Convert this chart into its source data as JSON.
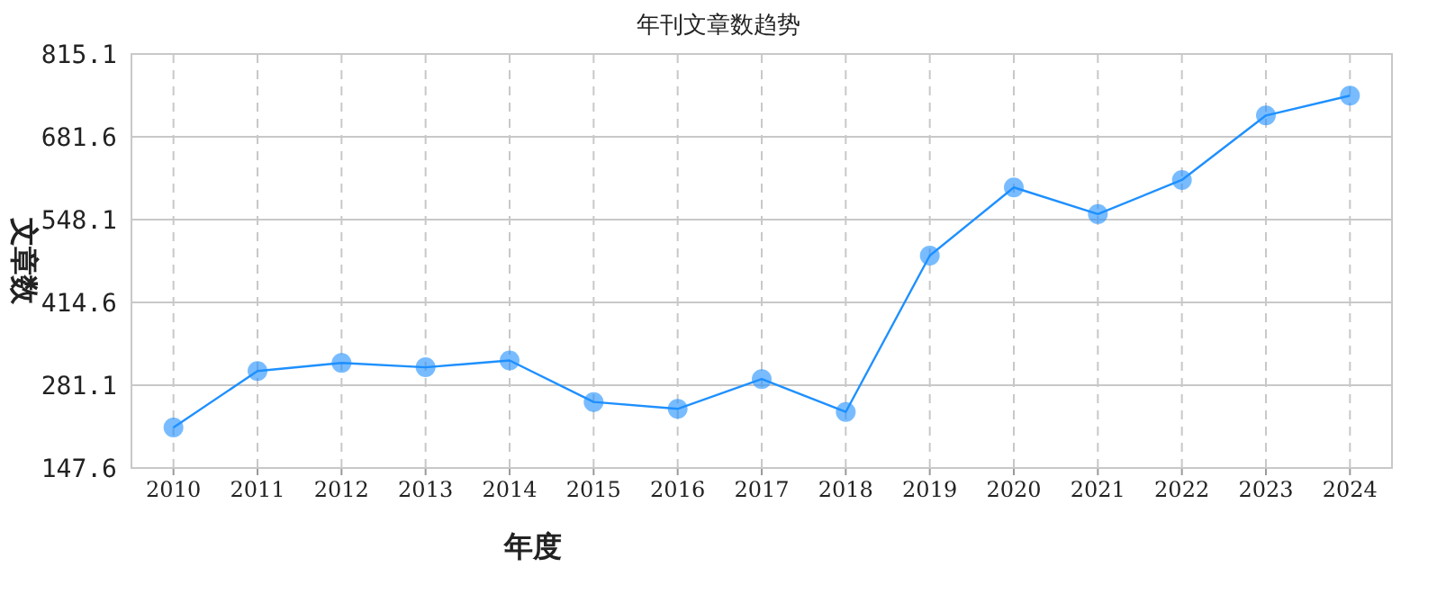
{
  "chart_data": {
    "type": "line",
    "title": "年刊文章数趋势",
    "xlabel": "年度",
    "ylabel": "文章数",
    "categories": [
      "2010",
      "2011",
      "2012",
      "2013",
      "2014",
      "2015",
      "2016",
      "2017",
      "2018",
      "2019",
      "2020",
      "2021",
      "2022",
      "2023",
      "2024"
    ],
    "series": [
      {
        "color": "#1e90ff",
        "values": [
          213,
          304,
          317,
          310,
          321,
          254,
          243,
          291,
          238,
          490,
          600,
          557,
          612,
          716,
          748
        ]
      }
    ],
    "ylim": [
      147.6,
      815.1
    ],
    "yticks": [
      147.6,
      281.1,
      414.6,
      548.1,
      681.6,
      815.1
    ],
    "grid": true,
    "marker": "circle",
    "line_style": "solid"
  }
}
